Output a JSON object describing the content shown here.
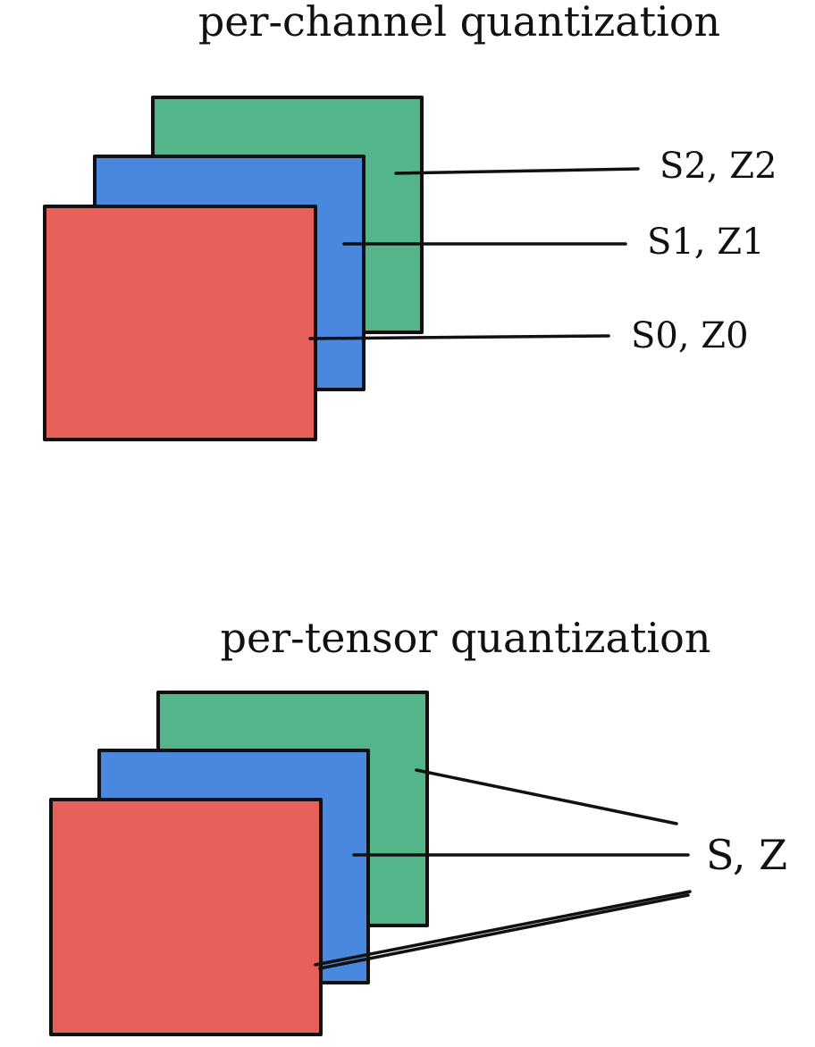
{
  "colors": {
    "channel_0": "#E8605A",
    "channel_1": "#4A88E0",
    "channel_2": "#55B58A",
    "outline": "#111111",
    "background": "#FFFFFF"
  },
  "per_channel": {
    "title": "per-channel quantization",
    "labels": [
      "S2, Z2",
      "S1, Z1",
      "S0, Z0"
    ]
  },
  "per_tensor": {
    "title": "per-tensor quantization",
    "label": "S, Z"
  }
}
